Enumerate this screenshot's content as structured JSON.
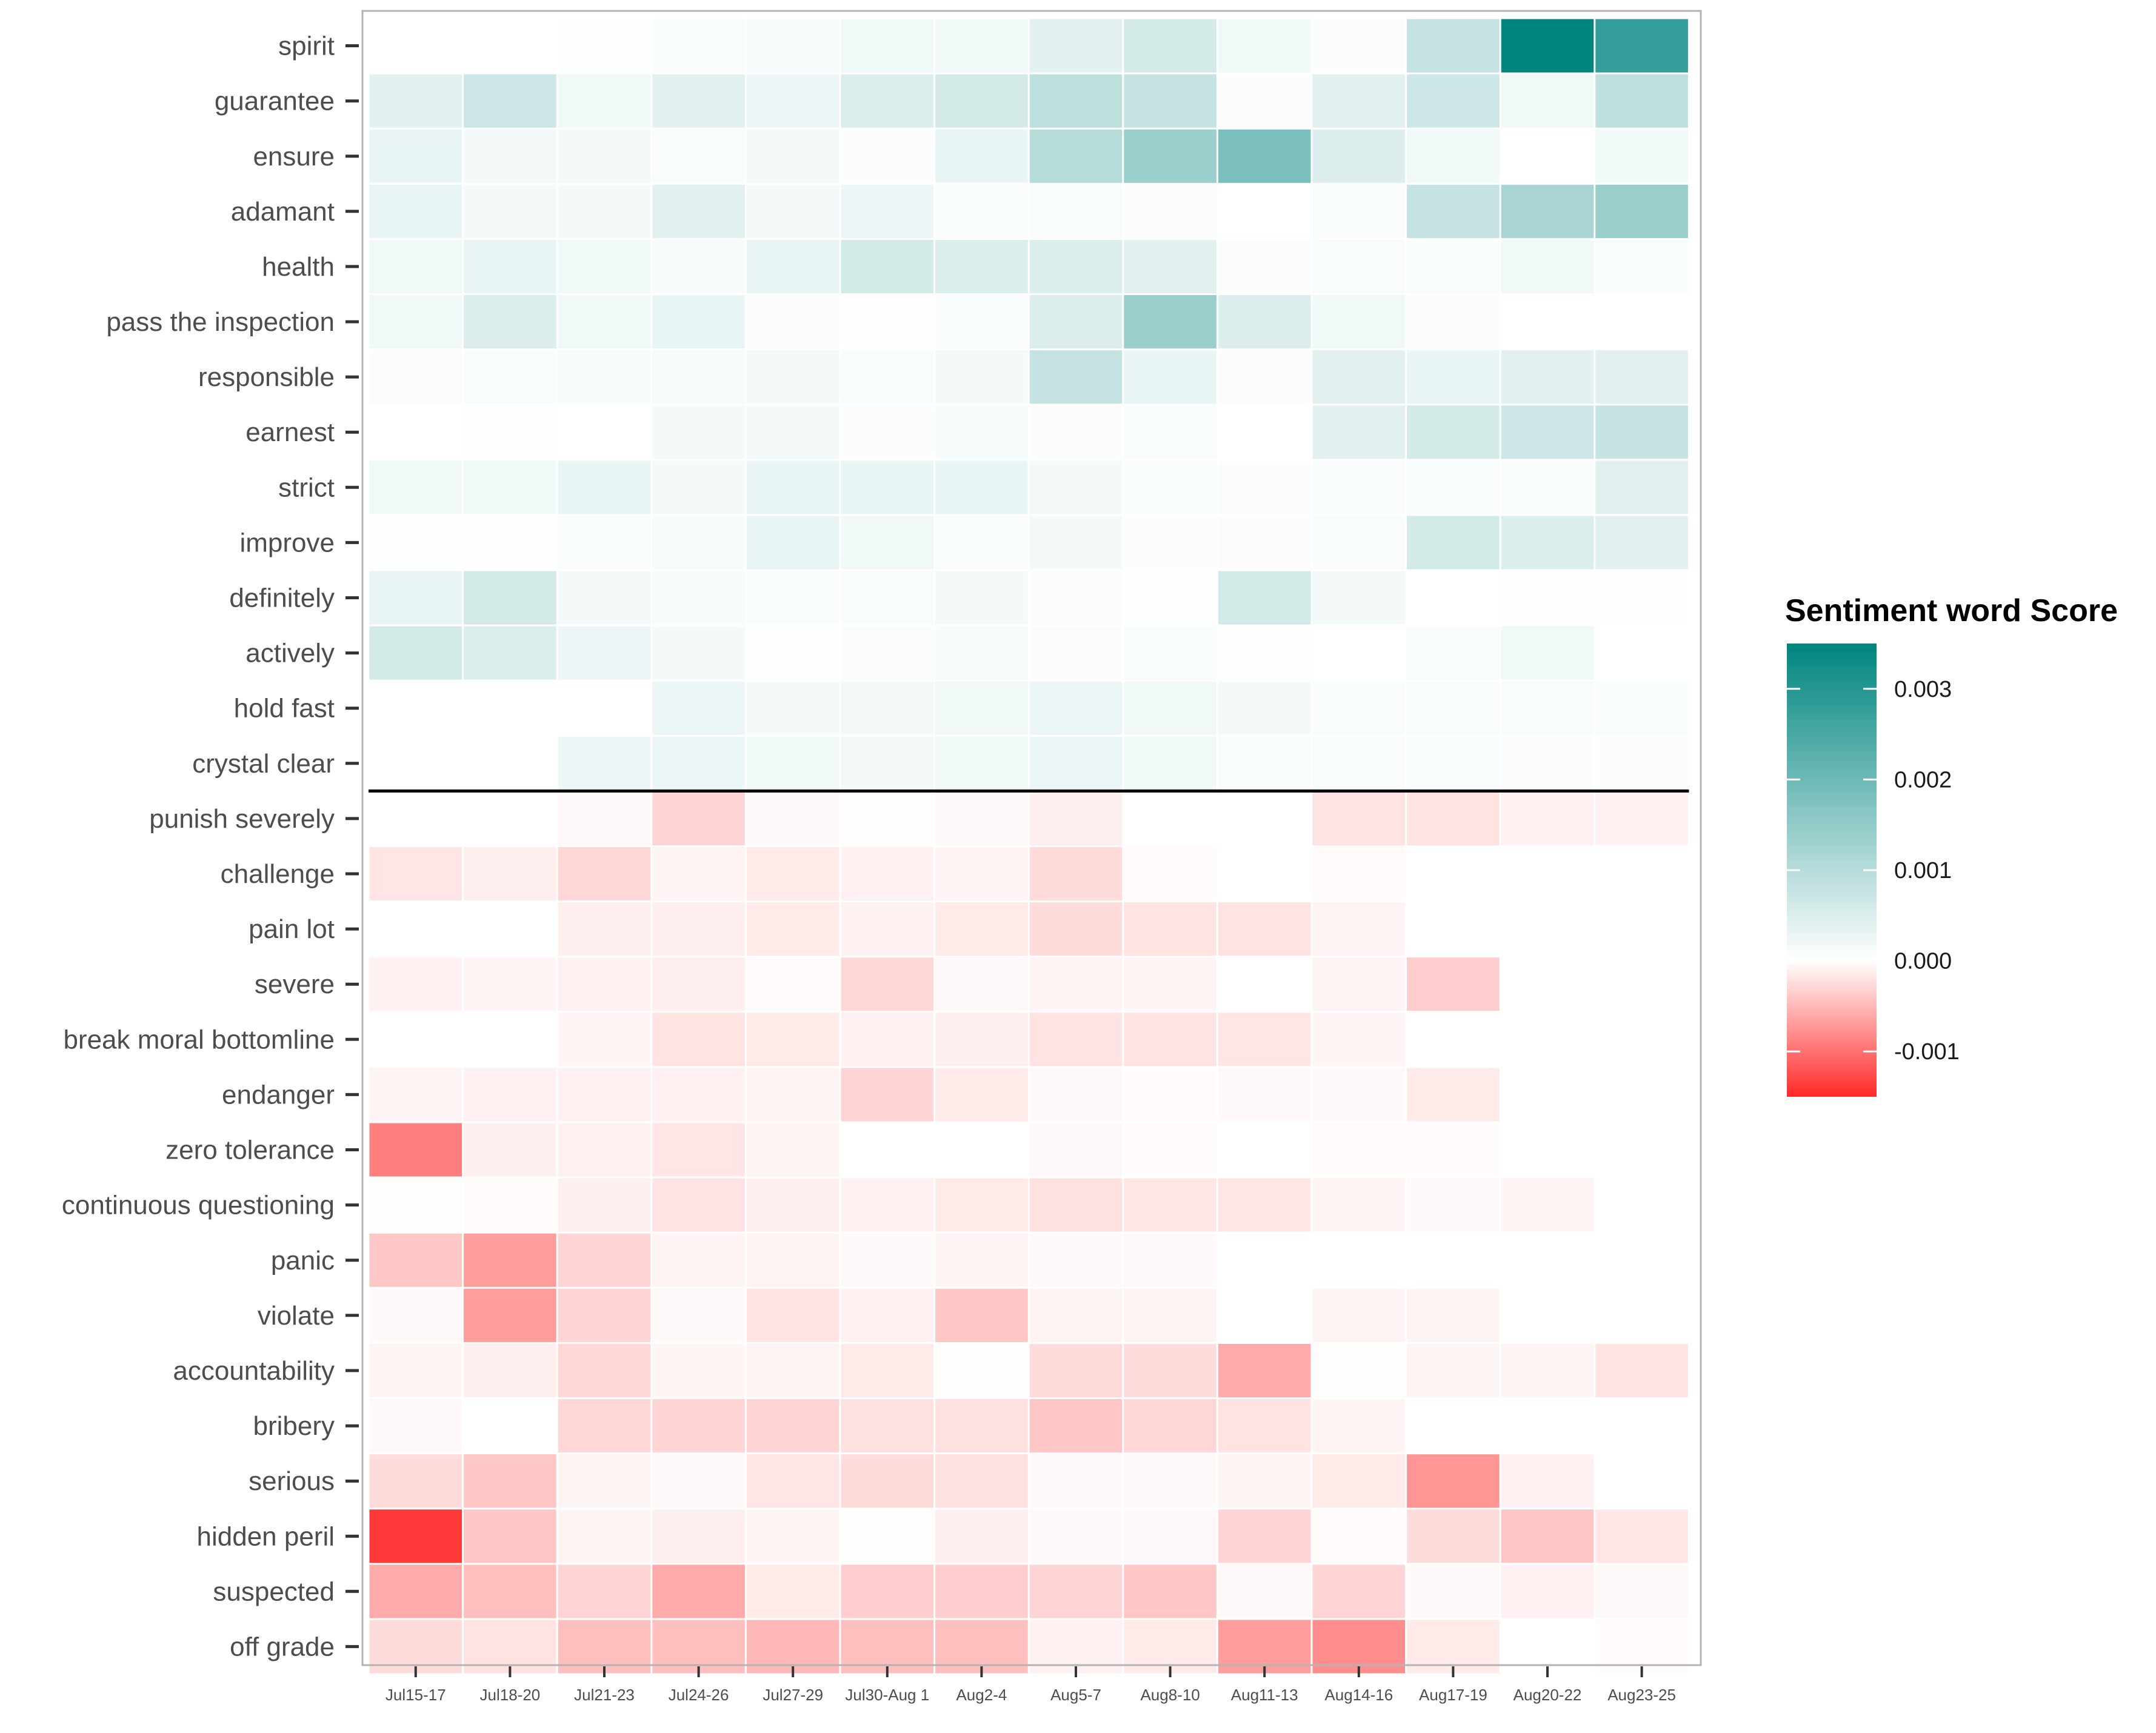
{
  "chart_data": {
    "type": "heatmap",
    "title": "",
    "xlabel": "",
    "ylabel": "",
    "legend": {
      "title": "Sentiment word Score",
      "position": "right",
      "ticks": [
        {
          "value": 0.003,
          "label": "0.003"
        },
        {
          "value": 0.002,
          "label": "0.002"
        },
        {
          "value": 0.001,
          "label": "0.001"
        },
        {
          "value": 0.0,
          "label": "0.000"
        },
        {
          "value": -0.001,
          "label": "-0.001"
        }
      ],
      "range": [
        -0.0015,
        0.0035
      ],
      "colors": {
        "positive": "#00857f",
        "zero": "#ffffff",
        "negative": "#ff2a2a"
      }
    },
    "columns": [
      "Jul15-17",
      "Jul18-20",
      "Jul21-23",
      "Jul24-26",
      "Jul27-29",
      "Jul30-Aug 1",
      "Aug2-4",
      "Aug5-7",
      "Aug8-10",
      "Aug11-13",
      "Aug14-16",
      "Aug17-19",
      "Aug20-22",
      "Aug23-25"
    ],
    "separator_after_row": 13,
    "rows": [
      {
        "label": "spirit",
        "values": [
          0,
          0,
          3e-05,
          0.0001,
          0.00013,
          0.0002,
          0.0002,
          0.0004,
          0.0006,
          0.0002,
          5e-05,
          0.0008,
          0.0035,
          0.0028
        ]
      },
      {
        "label": "guarantee",
        "values": [
          0.0004,
          0.0007,
          0.0002,
          0.0004,
          0.00025,
          0.0005,
          0.0006,
          0.0009,
          0.0008,
          5e-05,
          0.0004,
          0.0007,
          0.0002,
          0.0009
        ]
      },
      {
        "label": "ensure",
        "values": [
          0.0003,
          0.00015,
          0.00015,
          0.0001,
          0.00015,
          5e-05,
          0.0003,
          0.001,
          0.0014,
          0.0018,
          0.0005,
          0.0002,
          0.0,
          0.0002
        ]
      },
      {
        "label": "adamant",
        "values": [
          0.0003,
          0.00015,
          0.00015,
          0.0004,
          0.00015,
          0.00025,
          0.0001,
          0.0001,
          5e-05,
          0.0,
          0.0001,
          0.0008,
          0.0012,
          0.0014
        ]
      },
      {
        "label": "health",
        "values": [
          0.0002,
          0.0003,
          0.0002,
          0.00012,
          0.0003,
          0.0006,
          0.0005,
          0.0005,
          0.0004,
          5e-05,
          0.0001,
          0.0001,
          0.0002,
          0.0001
        ]
      },
      {
        "label": "pass the inspection",
        "values": [
          0.0002,
          0.0005,
          0.0002,
          0.0003,
          5e-05,
          2e-05,
          8e-05,
          0.0005,
          0.0014,
          0.0005,
          0.0002,
          5e-05,
          0.0,
          0.0
        ]
      },
      {
        "label": "responsible",
        "values": [
          5e-05,
          8e-05,
          0.00012,
          0.00012,
          0.00015,
          8e-05,
          0.00015,
          0.0008,
          0.0003,
          5e-05,
          0.0004,
          0.0003,
          0.0004,
          0.0004
        ]
      },
      {
        "label": "earnest",
        "values": [
          0.0,
          3e-05,
          1e-05,
          0.00015,
          0.00015,
          5e-05,
          0.00012,
          5e-05,
          0.0001,
          0.0,
          0.0004,
          0.0006,
          0.0007,
          0.0008
        ]
      },
      {
        "label": "strict",
        "values": [
          0.0002,
          0.0002,
          0.0003,
          0.00015,
          0.0003,
          0.0003,
          0.0003,
          0.00015,
          0.0001,
          5e-05,
          8e-05,
          8e-05,
          0.0001,
          0.0004
        ]
      },
      {
        "label": "improve",
        "values": [
          3e-05,
          2e-05,
          8e-05,
          0.00012,
          0.0003,
          0.0002,
          0.0001,
          0.00015,
          5e-05,
          5e-05,
          0.0001,
          0.0006,
          0.0005,
          0.0004
        ]
      },
      {
        "label": "definitely",
        "values": [
          0.0003,
          0.0006,
          0.00015,
          0.00012,
          8e-05,
          8e-05,
          0.00015,
          5e-05,
          3e-05,
          0.0006,
          0.00015,
          0.0,
          2e-05,
          3e-05
        ]
      },
      {
        "label": "actively",
        "values": [
          0.0006,
          0.0005,
          0.00025,
          0.00015,
          3e-05,
          5e-05,
          0.00012,
          5e-05,
          8e-05,
          2e-05,
          0.0,
          8e-05,
          0.0002,
          0.0
        ]
      },
      {
        "label": "hold fast",
        "values": [
          0.0,
          0.0,
          0.0,
          0.00025,
          0.00015,
          0.00015,
          0.0002,
          0.00025,
          0.0002,
          0.00015,
          0.0001,
          8e-05,
          8e-05,
          8e-05
        ]
      },
      {
        "label": "crystal clear",
        "values": [
          0.0,
          0.0,
          0.00025,
          0.00025,
          0.0002,
          0.00015,
          0.0002,
          0.00025,
          0.0002,
          0.0001,
          0.0001,
          8e-05,
          5e-05,
          5e-05
        ]
      },
      {
        "label": "punish severely",
        "values": [
          0.0,
          0.0,
          -5e-05,
          -0.0003,
          -5e-05,
          -2e-05,
          -5e-05,
          -0.00012,
          0.0,
          0.0,
          -0.0002,
          -0.0002,
          -0.0001,
          -0.0001
        ]
      },
      {
        "label": "challenge",
        "values": [
          -0.00018,
          -0.00012,
          -0.00028,
          -8e-05,
          -0.00015,
          -0.0001,
          -8e-05,
          -0.00025,
          -3e-05,
          0.0,
          -3e-05,
          0.0,
          0.0,
          0.0
        ]
      },
      {
        "label": "pain lot",
        "values": [
          0.0,
          0.0,
          -0.00012,
          -0.00012,
          -0.00015,
          -0.0001,
          -0.00015,
          -0.00025,
          -0.0002,
          -0.0002,
          -8e-05,
          0.0,
          0.0,
          0.0
        ]
      },
      {
        "label": "severe",
        "values": [
          -0.0001,
          -7e-05,
          -0.0001,
          -0.00012,
          -3e-05,
          -0.00028,
          -5e-05,
          -8e-05,
          -8e-05,
          0.0,
          -8e-05,
          -0.00035,
          0.0,
          0.0
        ]
      },
      {
        "label": "break moral bottomline",
        "values": [
          0.0,
          0.0,
          -7e-05,
          -0.0002,
          -0.00015,
          -0.0001,
          -0.00012,
          -0.0002,
          -0.0002,
          -0.00018,
          -7e-05,
          0.0,
          0.0,
          0.0
        ]
      },
      {
        "label": "endanger",
        "values": [
          -8e-05,
          -0.0001,
          -0.0001,
          -0.0001,
          -8e-05,
          -0.0003,
          -0.00015,
          -5e-05,
          -3e-05,
          -5e-05,
          -5e-05,
          -0.00015,
          0.0,
          0.0
        ]
      },
      {
        "label": "zero tolerance",
        "values": [
          -0.0009,
          -0.00012,
          -0.0001,
          -0.00018,
          -8e-05,
          0.0,
          0.0,
          -5e-05,
          -3e-05,
          0.0,
          -3e-05,
          -3e-05,
          0.0,
          0.0
        ]
      },
      {
        "label": "continuous questioning",
        "values": [
          -2e-05,
          -3e-05,
          -0.00012,
          -0.0002,
          -0.00012,
          -0.0001,
          -0.00015,
          -0.00022,
          -0.00018,
          -0.00018,
          -8e-05,
          -5e-05,
          -8e-05,
          0.0
        ]
      },
      {
        "label": "panic",
        "values": [
          -0.0004,
          -0.0007,
          -0.0003,
          -8e-05,
          -8e-05,
          -5e-05,
          -8e-05,
          -5e-05,
          -5e-05,
          0.0,
          0.0,
          0.0,
          0.0,
          0.0
        ]
      },
      {
        "label": "violate",
        "values": [
          -5e-05,
          -0.0007,
          -0.0003,
          -5e-05,
          -0.0002,
          -0.0001,
          -0.0004,
          -8e-05,
          -8e-05,
          0.0,
          -8e-05,
          -8e-05,
          0.0,
          0.0
        ]
      },
      {
        "label": "accountability",
        "values": [
          -8e-05,
          -0.00012,
          -0.00028,
          -7e-05,
          -8e-05,
          -0.00015,
          -2e-05,
          -0.00025,
          -0.00025,
          -0.0006,
          -2e-05,
          -8e-05,
          -8e-05,
          -0.0002
        ]
      },
      {
        "label": "bribery",
        "values": [
          -5e-05,
          0.0,
          -0.00028,
          -0.0003,
          -0.0003,
          -0.00022,
          -0.00022,
          -0.0004,
          -0.00028,
          -0.0002,
          -8e-05,
          0.0,
          0.0,
          0.0
        ]
      },
      {
        "label": "serious",
        "values": [
          -0.00025,
          -0.0004,
          -8e-05,
          -5e-05,
          -0.00018,
          -0.00025,
          -0.00022,
          -5e-05,
          -5e-05,
          -7e-05,
          -0.00015,
          -0.00075,
          -0.0001,
          0.0
        ]
      },
      {
        "label": "hidden peril",
        "values": [
          -0.0014,
          -0.0004,
          -8e-05,
          -0.00012,
          -8e-05,
          -2e-05,
          -0.00012,
          -5e-05,
          -5e-05,
          -0.0003,
          -3e-05,
          -0.00025,
          -0.0004,
          -0.00018
        ]
      },
      {
        "label": "suspected",
        "values": [
          -0.0006,
          -0.00045,
          -0.0003,
          -0.0006,
          -0.00015,
          -0.00035,
          -0.00035,
          -0.0003,
          -0.0004,
          -5e-05,
          -0.0003,
          -5e-05,
          -0.0001,
          -5e-05
        ]
      },
      {
        "label": "off grade",
        "values": [
          -0.00025,
          -0.0002,
          -0.00045,
          -0.00045,
          -0.0005,
          -0.00045,
          -0.00045,
          -0.0001,
          -0.00015,
          -0.0007,
          -0.0008,
          -0.00015,
          0.0,
          -3e-05
        ]
      }
    ]
  }
}
